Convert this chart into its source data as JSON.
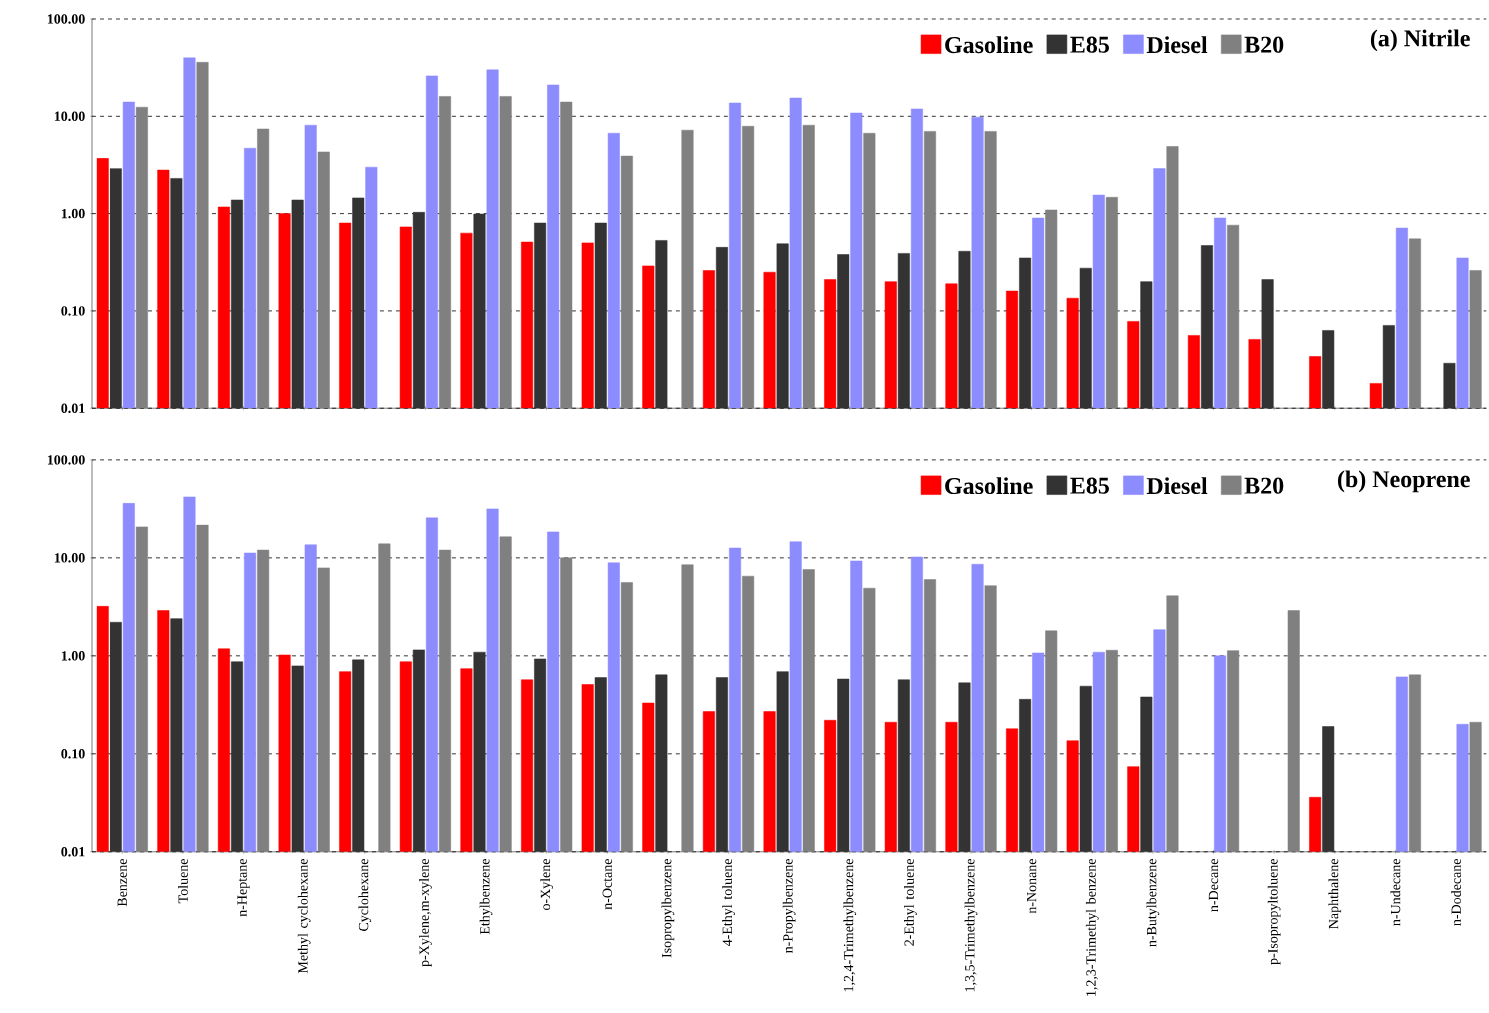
{
  "chart_data": [
    {
      "type": "bar",
      "title": "(a) Nitrile",
      "log": true,
      "grid": "y",
      "legend": "top right",
      "tick_labels": "y",
      "categories": [
        null,
        null,
        null,
        null,
        null,
        null,
        null,
        null,
        null,
        null,
        null,
        null,
        null,
        null,
        null,
        null,
        null,
        null,
        null,
        null,
        null,
        null,
        null
      ],
      "ylim": [
        0.01,
        100
      ],
      "yticks": [
        {
          "value": 0.01,
          "label": "0.01"
        },
        {
          "value": 0.1,
          "label": "0.10"
        },
        {
          "value": 1,
          "label": "1.00"
        },
        {
          "value": 10,
          "label": "10.00"
        },
        {
          "value": 100,
          "label": "100.00"
        }
      ],
      "series": [
        {
          "name": "Gasoline",
          "color": "#ff0000",
          "values": [
            3.7,
            2.8,
            1.17,
            1.0,
            0.8,
            0.73,
            0.63,
            0.51,
            0.5,
            0.29,
            0.26,
            0.25,
            0.21,
            0.2,
            0.19,
            0.16,
            0.135,
            0.078,
            0.056,
            0.051,
            0.034,
            0.018,
            null
          ]
        },
        {
          "name": "E85",
          "color": "#333333",
          "values": [
            2.9,
            2.3,
            1.38,
            1.38,
            1.45,
            1.03,
            0.99,
            0.8,
            0.8,
            0.53,
            0.45,
            0.49,
            0.38,
            0.39,
            0.41,
            0.35,
            0.275,
            0.2,
            0.47,
            0.21,
            0.063,
            0.071,
            0.029
          ]
        },
        {
          "name": "Diesel",
          "color": "#8c8cff",
          "values": [
            14,
            40,
            4.7,
            8.1,
            3.0,
            26,
            30,
            21,
            6.7,
            null,
            13.7,
            15.4,
            10.8,
            11.9,
            9.8,
            0.9,
            1.55,
            2.9,
            0.9,
            null,
            null,
            0.71,
            0.35
          ]
        },
        {
          "name": "B20",
          "color": "#808080",
          "values": [
            12.4,
            36,
            7.4,
            4.3,
            null,
            16,
            16,
            14,
            3.9,
            7.2,
            7.9,
            8.1,
            6.7,
            7.0,
            7.0,
            1.09,
            1.47,
            4.9,
            0.76,
            null,
            null,
            0.55,
            0.26
          ]
        }
      ]
    },
    {
      "type": "bar",
      "title": "(b) Neoprene",
      "log": true,
      "grid": "y",
      "legend": "top right",
      "categories": [
        "Benzene",
        "Toluene",
        "n-Heptane",
        "Methyl cyclohexane",
        "Cyclohexane",
        "p-Xylene,m-xylene",
        "Ethylbenzene",
        "o-Xylene",
        "n-Octane",
        "Isopropylbenzene",
        "4-Ethyl toluene",
        "n-Propylbenzene",
        "1,2,4-Trimethylbenzene",
        "2-Ethyl toluene",
        "1,3,5-Trimethylbenzene",
        "n-Nonane",
        "1,2,3-Trimethyl benzene",
        "n-Butylbenzene",
        "n-Decane",
        "p-Isopropyltoluene",
        "Naphthalene",
        "n-Undecane",
        "n-Dodecane"
      ],
      "ylim": [
        0.01,
        100
      ],
      "yticks": [
        {
          "value": 0.01,
          "label": "0.01"
        },
        {
          "value": 0.1,
          "label": "0.10"
        },
        {
          "value": 1,
          "label": "1.00"
        },
        {
          "value": 10,
          "label": "10.00"
        },
        {
          "value": 100,
          "label": "100.00"
        }
      ],
      "series": [
        {
          "name": "Gasoline",
          "color": "#ff0000",
          "values": [
            3.2,
            2.9,
            1.18,
            1.02,
            0.69,
            0.87,
            0.74,
            0.57,
            0.51,
            0.33,
            0.27,
            0.27,
            0.22,
            0.21,
            0.21,
            0.18,
            0.136,
            0.074,
            null,
            null,
            0.036,
            null,
            null
          ]
        },
        {
          "name": "E85",
          "color": "#333333",
          "values": [
            2.2,
            2.4,
            0.87,
            0.79,
            0.91,
            1.15,
            1.09,
            0.93,
            0.6,
            0.64,
            0.6,
            0.69,
            0.58,
            0.57,
            0.53,
            0.36,
            0.49,
            0.38,
            null,
            null,
            0.19,
            null,
            null
          ]
        },
        {
          "name": "Diesel",
          "color": "#8c8cff",
          "values": [
            36,
            42,
            11.2,
            13.6,
            null,
            25.6,
            31.6,
            18.4,
            8.9,
            null,
            12.6,
            14.6,
            9.3,
            10.2,
            8.6,
            1.07,
            1.09,
            1.85,
            1.0,
            null,
            null,
            0.61,
            0.2
          ]
        },
        {
          "name": "B20",
          "color": "#808080",
          "values": [
            20.7,
            21.7,
            12,
            7.9,
            13.9,
            12,
            16.4,
            10,
            5.6,
            8.5,
            6.5,
            7.6,
            4.9,
            6.0,
            5.2,
            1.8,
            1.14,
            4.1,
            1.13,
            2.9,
            null,
            0.64,
            0.21
          ]
        }
      ]
    }
  ]
}
